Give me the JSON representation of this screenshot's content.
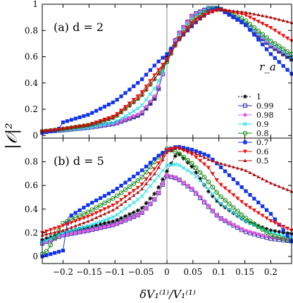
{
  "chart_data": {
    "type": "line",
    "ylabel": "|𝒪|²",
    "xlabel": "δV₁⁽¹⁾/V₁⁽¹⁾",
    "xlim": [
      -0.24,
      0.24
    ],
    "xticks": [
      -0.2,
      -0.15,
      -0.1,
      -0.05,
      0,
      0.05,
      0.1,
      0.15,
      0.2
    ],
    "xtick_labels": [
      "−0.2",
      "−0.15",
      "−0.1",
      "−0.05",
      "0",
      "0.05",
      "0.1",
      "0.15",
      "0.2"
    ],
    "legend": {
      "title": "r_a",
      "placement": "right of top panel",
      "entries": [
        "1",
        "0.99",
        "0.98",
        "0.9",
        "0.8",
        "0.7",
        "0.6",
        "0.5"
      ]
    },
    "series_styles": [
      {
        "color": "#000000",
        "marker": "star"
      },
      {
        "color": "#3333aa",
        "marker": "square-open"
      },
      {
        "color": "#e060e0",
        "marker": "circle"
      },
      {
        "color": "#22e0e8",
        "marker": "x"
      },
      {
        "color": "#118811",
        "marker": "circle-open"
      },
      {
        "color": "#1133ee",
        "marker": "square"
      },
      {
        "color": "#ee1111",
        "marker": "triangle-down"
      },
      {
        "color": "#aa1111",
        "marker": "triangle-up"
      }
    ],
    "panels": [
      {
        "label": "(a)  d = 2",
        "ylim": [
          -0.02,
          1.0
        ],
        "yticks": [
          0,
          0.2,
          0.4,
          0.6,
          0.8,
          1
        ],
        "ytick_labels": [
          "0",
          "0.2",
          "0.4",
          "0.6",
          "0.8",
          "1"
        ],
        "series": [
          {
            "name": "1",
            "x": [
              -0.24,
              -0.2,
              -0.15,
              -0.1,
              -0.05,
              -0.02,
              0,
              0.02,
              0.05,
              0.08,
              0.1,
              0.15,
              0.2,
              0.24
            ],
            "y": [
              0.03,
              0.04,
              0.06,
              0.09,
              0.16,
              0.3,
              0.6,
              0.76,
              0.92,
              0.97,
              0.97,
              0.85,
              0.68,
              0.58
            ]
          },
          {
            "name": "0.99",
            "x": [
              -0.24,
              -0.2,
              -0.15,
              -0.1,
              -0.05,
              -0.02,
              0,
              0.02,
              0.05,
              0.08,
              0.1,
              0.15,
              0.2,
              0.24
            ],
            "y": [
              0.03,
              0.04,
              0.06,
              0.09,
              0.16,
              0.3,
              0.58,
              0.76,
              0.92,
              0.97,
              0.97,
              0.85,
              0.68,
              0.58
            ]
          },
          {
            "name": "0.98",
            "x": [
              -0.24,
              -0.2,
              -0.15,
              -0.1,
              -0.05,
              -0.02,
              0,
              0.02,
              0.05,
              0.08,
              0.1,
              0.15,
              0.2,
              0.24
            ],
            "y": [
              0.03,
              0.04,
              0.06,
              0.09,
              0.17,
              0.32,
              0.58,
              0.76,
              0.92,
              0.97,
              0.97,
              0.86,
              0.69,
              0.6
            ]
          },
          {
            "name": "0.9",
            "x": [
              -0.24,
              -0.2,
              -0.15,
              -0.1,
              -0.05,
              -0.02,
              0,
              0.02,
              0.05,
              0.08,
              0.1,
              0.15,
              0.2,
              0.24
            ],
            "y": [
              0.03,
              0.04,
              0.06,
              0.1,
              0.22,
              0.38,
              0.56,
              0.74,
              0.9,
              0.97,
              0.97,
              0.86,
              0.7,
              0.6
            ]
          },
          {
            "name": "0.8",
            "x": [
              -0.24,
              -0.2,
              -0.15,
              -0.1,
              -0.05,
              -0.02,
              0,
              0.02,
              0.05,
              0.08,
              0.1,
              0.15,
              0.2,
              0.24
            ],
            "y": [
              0.03,
              0.05,
              0.08,
              0.14,
              0.3,
              0.45,
              0.56,
              0.72,
              0.88,
              0.96,
              0.97,
              0.88,
              0.72,
              0.62
            ]
          },
          {
            "name": "0.7",
            "x": [
              -0.24,
              -0.21,
              -0.2,
              -0.15,
              -0.1,
              -0.05,
              -0.02,
              0,
              0.02,
              0.05,
              0.08,
              0.1,
              0.15,
              0.2,
              0.24
            ],
            "y": [
              0.02,
              0.04,
              0.1,
              0.16,
              0.26,
              0.42,
              0.55,
              0.62,
              0.72,
              0.84,
              0.95,
              0.97,
              0.85,
              0.62,
              0.47
            ]
          },
          {
            "name": "0.6",
            "x": [
              -0.24,
              -0.2,
              -0.15,
              -0.1,
              -0.05,
              -0.02,
              0,
              0.02,
              0.05,
              0.08,
              0.1,
              0.15,
              0.2,
              0.24
            ],
            "y": [
              0.03,
              0.05,
              0.08,
              0.15,
              0.32,
              0.48,
              0.58,
              0.72,
              0.87,
              0.94,
              0.96,
              0.92,
              0.82,
              0.72
            ]
          },
          {
            "name": "0.5",
            "x": [
              -0.24,
              -0.2,
              -0.15,
              -0.1,
              -0.05,
              -0.02,
              0,
              0.02,
              0.05,
              0.08,
              0.1,
              0.15,
              0.2,
              0.24
            ],
            "y": [
              0.03,
              0.05,
              0.08,
              0.14,
              0.3,
              0.45,
              0.57,
              0.71,
              0.85,
              0.93,
              0.96,
              0.94,
              0.9,
              0.86
            ]
          }
        ]
      },
      {
        "label": "(b)  d = 5",
        "ylim": [
          -0.06,
          1.0
        ],
        "yticks": [
          0,
          0.2,
          0.4,
          0.6,
          0.8
        ],
        "ytick_labels": [
          "0",
          "0.2",
          "0.4",
          "0.6",
          "0.8"
        ],
        "series": [
          {
            "name": "1",
            "x": [
              -0.24,
              -0.2,
              -0.15,
              -0.1,
              -0.05,
              -0.02,
              0,
              0.02,
              0.05,
              0.08,
              0.1,
              0.15,
              0.2,
              0.24
            ],
            "y": [
              0.14,
              0.2,
              0.25,
              0.3,
              0.4,
              0.55,
              0.72,
              0.88,
              0.75,
              0.55,
              0.45,
              0.3,
              0.22,
              0.19
            ]
          },
          {
            "name": "0.99",
            "x": [
              -0.24,
              -0.2,
              -0.15,
              -0.1,
              -0.05,
              -0.02,
              0,
              0.02,
              0.05,
              0.08,
              0.1,
              0.15,
              0.2,
              0.24
            ],
            "y": [
              0.11,
              0.18,
              0.22,
              0.27,
              0.36,
              0.5,
              0.68,
              0.66,
              0.56,
              0.42,
              0.33,
              0.21,
              0.15,
              0.13
            ]
          },
          {
            "name": "0.98",
            "x": [
              -0.24,
              -0.2,
              -0.15,
              -0.1,
              -0.05,
              -0.02,
              0,
              0.02,
              0.05,
              0.08,
              0.1,
              0.15,
              0.2,
              0.24
            ],
            "y": [
              0.11,
              0.18,
              0.22,
              0.27,
              0.36,
              0.5,
              0.69,
              0.66,
              0.57,
              0.43,
              0.33,
              0.22,
              0.16,
              0.14
            ]
          },
          {
            "name": "0.9",
            "x": [
              -0.24,
              -0.2,
              -0.15,
              -0.1,
              -0.05,
              -0.02,
              0,
              0.02,
              0.05,
              0.08,
              0.1,
              0.15,
              0.2,
              0.24
            ],
            "y": [
              0.12,
              0.2,
              0.26,
              0.34,
              0.5,
              0.66,
              0.77,
              0.78,
              0.7,
              0.57,
              0.46,
              0.3,
              0.2,
              0.16
            ]
          },
          {
            "name": "0.8",
            "x": [
              -0.24,
              -0.23,
              -0.2,
              -0.15,
              -0.1,
              -0.05,
              -0.02,
              0,
              0.02,
              0.05,
              0.08,
              0.1,
              0.15,
              0.2,
              0.24
            ],
            "y": [
              0.02,
              0.05,
              0.28,
              0.38,
              0.5,
              0.66,
              0.82,
              0.91,
              0.88,
              0.78,
              0.63,
              0.52,
              0.33,
              0.18,
              0.13
            ]
          },
          {
            "name": "0.7",
            "x": [
              -0.24,
              -0.2,
              -0.195,
              -0.19,
              -0.15,
              -0.1,
              -0.05,
              -0.02,
              0,
              0.02,
              0.05,
              0.08,
              0.1,
              0.15,
              0.2,
              0.24
            ],
            "y": [
              0.0,
              0.05,
              0.2,
              0.33,
              0.44,
              0.56,
              0.72,
              0.84,
              0.9,
              0.93,
              0.9,
              0.85,
              0.77,
              0.56,
              0.36,
              0.13
            ]
          },
          {
            "name": "0.6",
            "x": [
              -0.24,
              -0.2,
              -0.15,
              -0.1,
              -0.05,
              -0.02,
              0,
              0.02,
              0.05,
              0.08,
              0.1,
              0.15,
              0.2,
              0.24
            ],
            "y": [
              0.2,
              0.26,
              0.34,
              0.44,
              0.6,
              0.76,
              0.9,
              0.92,
              0.86,
              0.75,
              0.62,
              0.44,
              0.3,
              0.22
            ]
          },
          {
            "name": "0.5",
            "x": [
              -0.24,
              -0.2,
              -0.15,
              -0.1,
              -0.05,
              -0.02,
              0,
              0.02,
              0.05,
              0.08,
              0.1,
              0.15,
              0.2,
              0.24
            ],
            "y": [
              0.18,
              0.22,
              0.3,
              0.4,
              0.56,
              0.72,
              0.88,
              0.92,
              0.88,
              0.82,
              0.79,
              0.73,
              0.62,
              0.55
            ]
          }
        ]
      }
    ]
  }
}
